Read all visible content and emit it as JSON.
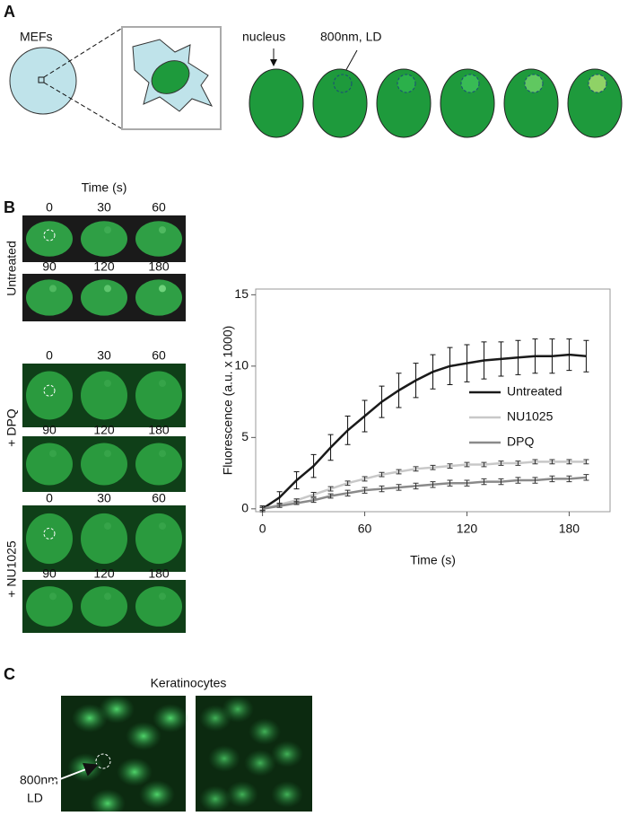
{
  "panel_a": {
    "label": "A",
    "cell_label": "MEFs",
    "nucleus_label": "nucleus",
    "ld_label": "800nm, LD"
  },
  "panel_b": {
    "label": "B",
    "time_header": "Time (s)",
    "groups": [
      {
        "treatment": "Untreated",
        "times": [
          [
            0,
            30,
            60
          ],
          [
            90,
            120,
            180
          ]
        ]
      },
      {
        "treatment": "+ DPQ",
        "times": [
          [
            0,
            30,
            60
          ],
          [
            90,
            120,
            180
          ]
        ]
      },
      {
        "treatment": "+ NU1025",
        "times": [
          [
            0,
            30,
            60
          ],
          [
            90,
            120,
            180
          ]
        ]
      }
    ]
  },
  "chart_data": {
    "type": "line",
    "xlabel": "Time (s)",
    "ylabel": "Fluorescence (a.u. x 1000)",
    "x": [
      0,
      10,
      20,
      30,
      40,
      50,
      60,
      70,
      80,
      90,
      100,
      110,
      120,
      130,
      140,
      150,
      160,
      170,
      180,
      190
    ],
    "xlim": [
      -4,
      204
    ],
    "xticks": [
      0,
      60,
      120,
      180
    ],
    "ylim": [
      -0.2,
      15.4
    ],
    "yticks": [
      0,
      5,
      10,
      15
    ],
    "series": [
      {
        "name": "Untreated",
        "color": "#1a1a1a",
        "values": [
          0,
          0.8,
          2,
          3,
          4.3,
          5.5,
          6.5,
          7.5,
          8.3,
          9,
          9.6,
          10,
          10.2,
          10.4,
          10.5,
          10.6,
          10.7,
          10.7,
          10.8,
          10.7
        ],
        "errors": [
          0.2,
          0.4,
          0.6,
          0.8,
          0.9,
          1,
          1.1,
          1.1,
          1.2,
          1.2,
          1.2,
          1.3,
          1.3,
          1.3,
          1.2,
          1.2,
          1.2,
          1.2,
          1.1,
          1.1
        ]
      },
      {
        "name": "NU1025",
        "color": "#c8c8c8",
        "values": [
          0,
          0.3,
          0.6,
          1,
          1.4,
          1.8,
          2.1,
          2.4,
          2.6,
          2.8,
          2.9,
          3,
          3.1,
          3.1,
          3.2,
          3.2,
          3.3,
          3.3,
          3.3,
          3.3
        ],
        "errors": [
          0.1,
          0.1,
          0.1,
          0.15,
          0.15,
          0.15,
          0.15,
          0.15,
          0.15,
          0.15,
          0.15,
          0.15,
          0.15,
          0.15,
          0.15,
          0.15,
          0.15,
          0.15,
          0.15,
          0.15
        ]
      },
      {
        "name": "DPQ",
        "color": "#8a8a8a",
        "values": [
          0,
          0.2,
          0.4,
          0.6,
          0.9,
          1.1,
          1.3,
          1.4,
          1.5,
          1.6,
          1.7,
          1.8,
          1.8,
          1.9,
          1.9,
          2,
          2,
          2.1,
          2.1,
          2.2
        ],
        "errors": [
          0.1,
          0.1,
          0.1,
          0.15,
          0.15,
          0.2,
          0.2,
          0.2,
          0.2,
          0.2,
          0.2,
          0.2,
          0.2,
          0.2,
          0.2,
          0.2,
          0.2,
          0.2,
          0.2,
          0.2
        ]
      }
    ]
  },
  "panel_c": {
    "label": "C",
    "title": "Keratinocytes",
    "ld_label_lines": [
      "800nm",
      "LD"
    ]
  }
}
